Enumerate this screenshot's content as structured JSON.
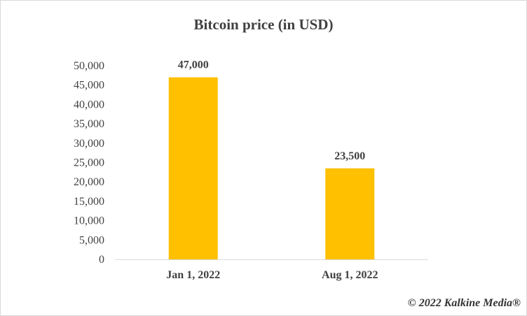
{
  "chart_data": {
    "type": "bar",
    "title": "Bitcoin price (in USD)",
    "categories": [
      "Jan 1, 2022",
      "Aug 1, 2022"
    ],
    "values": [
      47000,
      23500
    ],
    "value_labels": [
      "47,000",
      "23,500"
    ],
    "ylim": [
      0,
      50000
    ],
    "yticks": [
      0,
      5000,
      10000,
      15000,
      20000,
      25000,
      30000,
      35000,
      40000,
      45000,
      50000
    ],
    "ytick_labels": [
      "0",
      "5,000",
      "10,000",
      "15,000",
      "20,000",
      "25,000",
      "30,000",
      "35,000",
      "40,000",
      "45,000",
      "50,000"
    ],
    "xlabel": "",
    "ylabel": "",
    "grid": false,
    "bar_color": "#FFC000",
    "axis_color": "#d9d9d9"
  },
  "watermark": "© 2022 Kalkine Media®"
}
